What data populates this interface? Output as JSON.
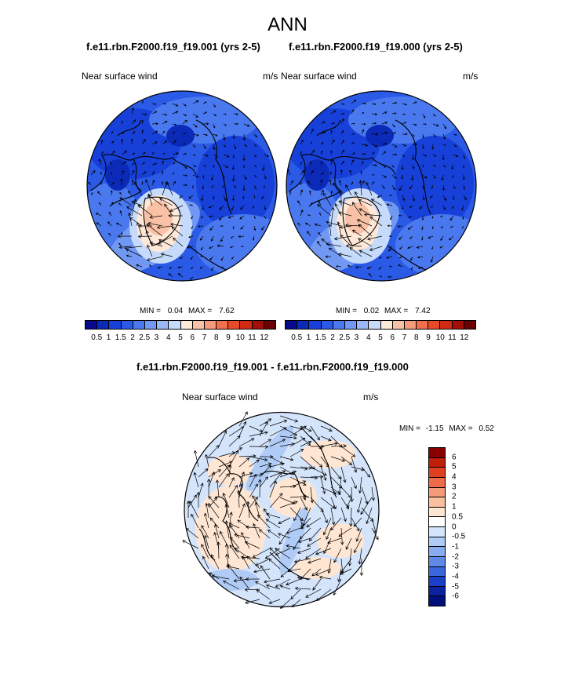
{
  "title": "ANN",
  "panels": [
    {
      "case_label": "f.e11.rbn.F2000.f19_f19.001 (yrs 2-5)",
      "variable": "Near surface wind",
      "units": "m/s",
      "min_label": "MIN =",
      "min_value": "0.04",
      "max_label": "MAX =",
      "max_value": "7.62"
    },
    {
      "case_label": "f.e11.rbn.F2000.f19_f19.000 (yrs 2-5)",
      "variable": "Near surface wind",
      "units": "m/s",
      "min_label": "MIN =",
      "min_value": "0.02",
      "max_label": "MAX =",
      "max_value": "7.42"
    }
  ],
  "diff_panel": {
    "title": "f.e11.rbn.F2000.f19_f19.001 - f.e11.rbn.F2000.f19_f19.000",
    "variable": "Near surface wind",
    "units": "m/s",
    "min_label": "MIN =",
    "min_value": "-1.15",
    "max_label": "MAX =",
    "max_value": "0.52"
  },
  "colorbar_top": {
    "labels": [
      "0.5",
      "1",
      "1.5",
      "2",
      "2.5",
      "3",
      "4",
      "5",
      "6",
      "7",
      "8",
      "9",
      "10",
      "11",
      "12"
    ],
    "colors": [
      "#08088a",
      "#0c2ab8",
      "#1740d8",
      "#2a5ae6",
      "#4a78ee",
      "#7198f2",
      "#9ab8f5",
      "#c6dafb",
      "#ffe8d8",
      "#f9c2a6",
      "#f59a7a",
      "#f0704e",
      "#e84a28",
      "#d02a12",
      "#a20f06",
      "#6a0000"
    ]
  },
  "colorbar_diff": {
    "labels": [
      "6",
      "5",
      "4",
      "3",
      "2",
      "1",
      "0.5",
      "0",
      "-0.5",
      "-1",
      "-2",
      "-3",
      "-4",
      "-5",
      "-6"
    ],
    "colors": [
      "#8a0000",
      "#c0200a",
      "#e04020",
      "#ee6a48",
      "#f59a7a",
      "#f9bf9f",
      "#ffe6d2",
      "#ffffff",
      "#d4e4fb",
      "#b0ccf6",
      "#88acf0",
      "#5f88e8",
      "#3a66de",
      "#1a40c8",
      "#0c22a0",
      "#00107a"
    ]
  }
}
